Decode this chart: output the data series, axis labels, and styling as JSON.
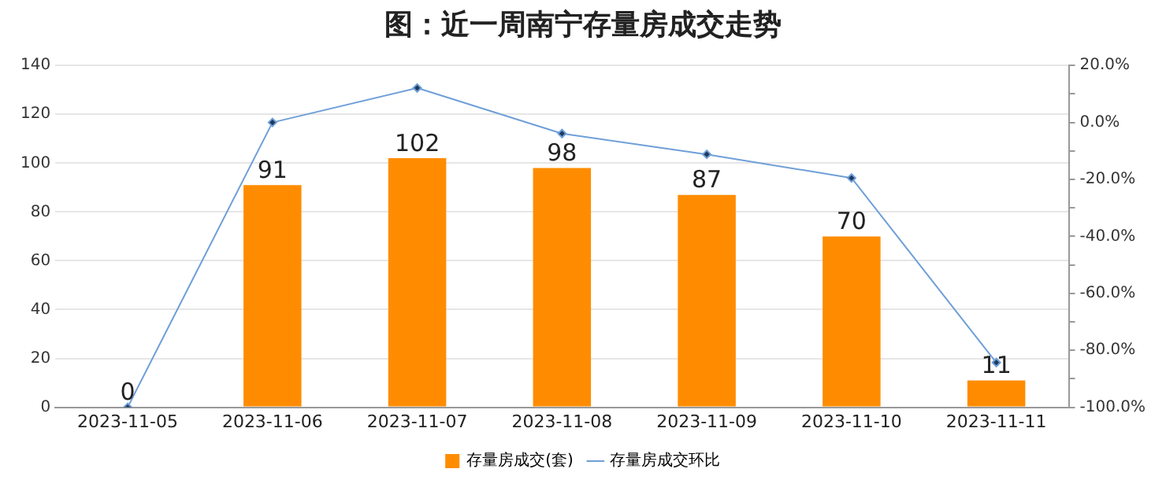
{
  "chart_data": {
    "type": "bar",
    "title": "图：近一周南宁存量房成交走势",
    "categories": [
      "2023-11-05",
      "2023-11-06",
      "2023-11-07",
      "2023-11-08",
      "2023-11-09",
      "2023-11-10",
      "2023-11-11"
    ],
    "series": [
      {
        "name": "存量房成交(套)",
        "color": "#ff8c00",
        "values": [
          0,
          91,
          102,
          98,
          87,
          70,
          11
        ],
        "value_labels": [
          "0",
          "91",
          "102",
          "98",
          "87",
          "70",
          "11"
        ]
      },
      {
        "name": "存量房成交环比",
        "type": "line",
        "axis": "y2",
        "color": "#6f9fd8",
        "marker": "diamond",
        "values": [
          -100,
          0,
          12.1,
          -3.9,
          -11.2,
          -19.5,
          -84.3
        ]
      }
    ],
    "ylim": [
      0,
      140
    ],
    "yticks": [
      0,
      20,
      40,
      60,
      80,
      100,
      120,
      140
    ],
    "y2lim": [
      -100,
      20
    ],
    "y2ticks": [
      {
        "value": -100,
        "label": "-100.0%"
      },
      {
        "value": -90,
        "label": null
      },
      {
        "value": -80,
        "label": "-80.0%"
      },
      {
        "value": -70,
        "label": null
      },
      {
        "value": -60,
        "label": "-60.0%"
      },
      {
        "value": -50,
        "label": null
      },
      {
        "value": -40,
        "label": "-40.0%"
      },
      {
        "value": -30,
        "label": null
      },
      {
        "value": -20,
        "label": "-20.0%"
      },
      {
        "value": -10,
        "label": null
      },
      {
        "value": 0,
        "label": "0.0%"
      },
      {
        "value": 10,
        "label": null
      },
      {
        "value": 20,
        "label": "20.0%"
      }
    ],
    "grid": "y",
    "legend": "bottom"
  }
}
